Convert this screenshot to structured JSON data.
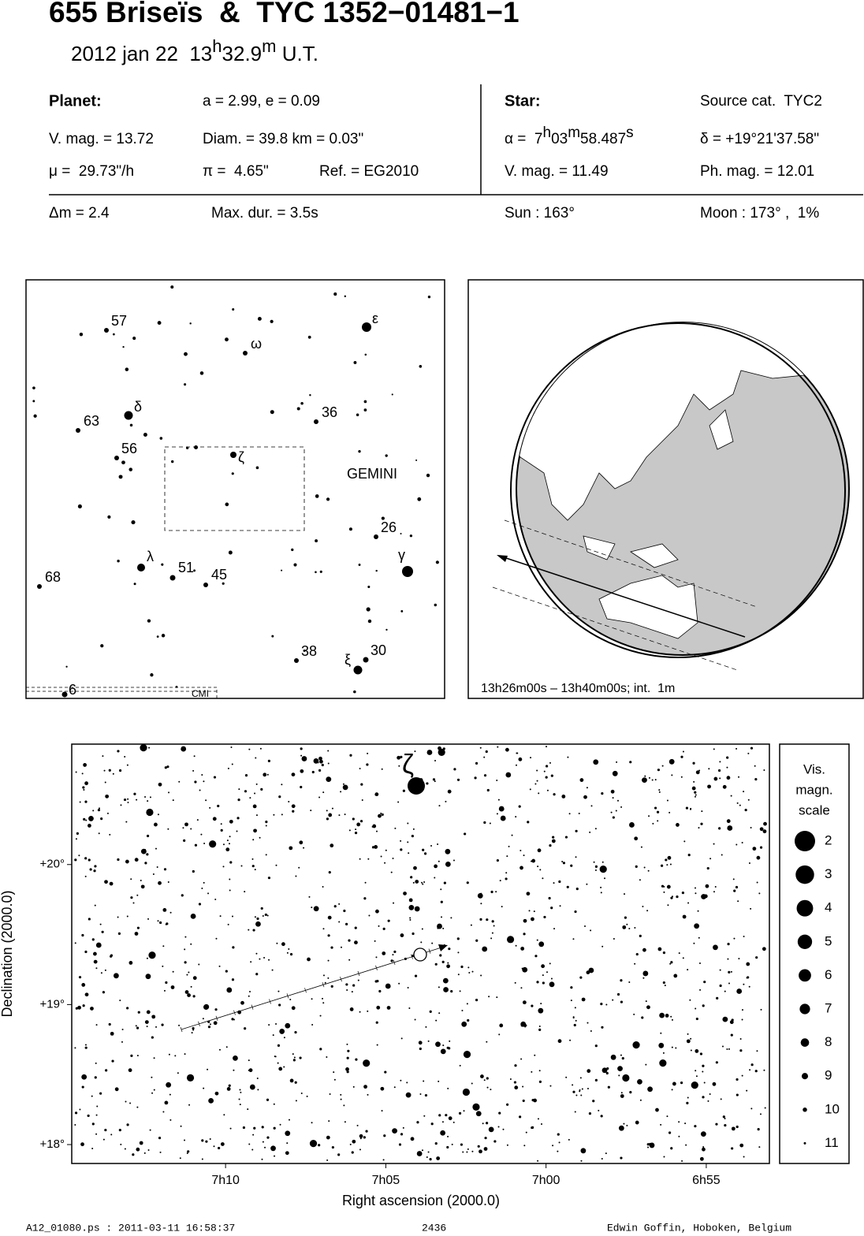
{
  "header": {
    "title": "655 Briseïs  &  TYC 1352−01481−1",
    "epoch": [
      "2012 jan 22  13",
      "h",
      "32.9",
      "m",
      " U.T."
    ]
  },
  "planet": {
    "heading": "Planet:",
    "orbit": "a = 2.99, e = 0.09",
    "vmag": "V. mag. = 13.72",
    "diam": "Diam. = 39.8 km = 0.03\"",
    "motion": "μ =  29.73\"/h",
    "parallax": "π =  4.65\"",
    "ref": "Ref. = EG2010"
  },
  "star": {
    "heading": "Star:",
    "source": "Source cat.  TYC2",
    "ra": [
      "α =  7",
      "h",
      "03",
      "m",
      "58.487",
      "s"
    ],
    "dec": "δ = +19°21'37.58\"",
    "vmag": "V. mag. = 11.49",
    "phmag": "Ph. mag. = 12.01"
  },
  "event": {
    "dm": "Δm = 2.4",
    "maxdur": "Max. dur. = 3.5s",
    "sun": "Sun : 163°",
    "moon": "Moon : 173° ,  1%"
  },
  "finder": {
    "labels": [
      "57",
      "ε",
      "ω",
      "δ",
      "63",
      "36",
      "56",
      "ζ",
      "GEMINI",
      "26",
      "λ",
      "51",
      "45",
      "γ",
      "68",
      "38",
      "ξ",
      "30",
      "6",
      "CMI"
    ]
  },
  "globe": {
    "caption": "13h26m00s – 13h40m00s; int.  1m"
  },
  "star_chart": {
    "star_label": "ζ",
    "x_label": "Right ascension (2000.0)",
    "y_label": "Declination (2000.0)",
    "xlim": [
      434.8,
      413.03
    ],
    "ylim": [
      17.865,
      20.86
    ],
    "xticks": [
      {
        "value": 430,
        "label": "7h10"
      },
      {
        "value": 425,
        "label": "7h05"
      },
      {
        "value": 420,
        "label": "7h00"
      },
      {
        "value": 415,
        "label": "6h55"
      }
    ],
    "yticks": [
      {
        "value": 20,
        "label": "+20°"
      },
      {
        "value": 19,
        "label": "+19°"
      },
      {
        "value": 18,
        "label": "+18°"
      }
    ]
  },
  "legend": {
    "title": [
      "Vis.",
      "magn.",
      "scale"
    ],
    "magnitudes": [
      2,
      3,
      4,
      5,
      6,
      7,
      8,
      9,
      10,
      11
    ]
  },
  "footer": {
    "file": "A12_01080.ps : 2011-03-11 16:58:37",
    "number": "2436",
    "author": "Edwin Goffin, Hoboken, Belgium"
  }
}
